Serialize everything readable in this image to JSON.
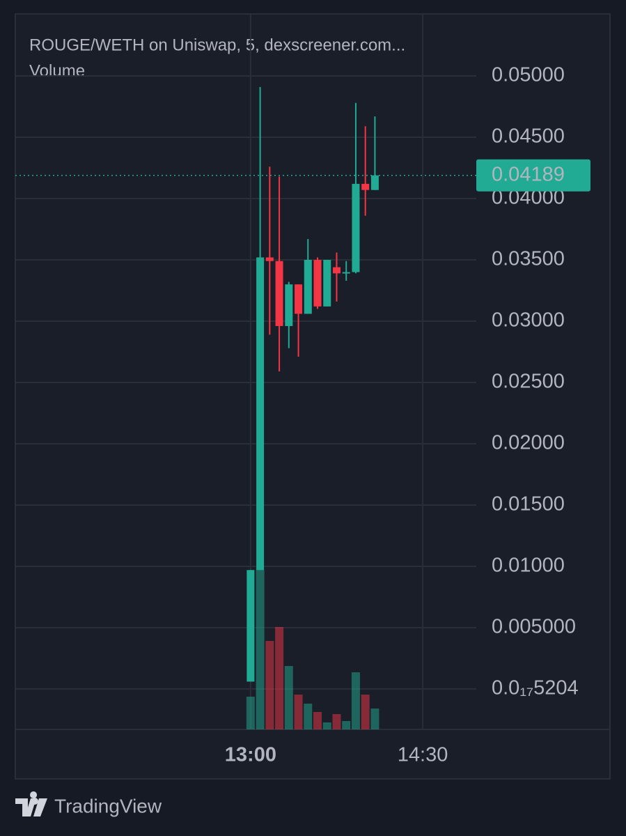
{
  "chart_data": {
    "type": "candlestick",
    "title": "ROUGE/WETH on Uniswap, 5, dexscreener.com...",
    "subtitle": "Volume",
    "brand": "TradingView",
    "x": [
      780,
      785,
      790,
      795,
      800,
      805,
      810,
      815,
      820,
      825,
      830,
      835,
      840,
      845
    ],
    "xlim": [
      657,
      898
    ],
    "xticks": [
      {
        "value": 780,
        "label": "13:00"
      },
      {
        "value": 870,
        "label": "14:30"
      }
    ],
    "open": [
      0.0006,
      0.0097,
      0.0352,
      0.0349,
      0.0296,
      0.033,
      0.0306,
      0.035,
      0.0312,
      0.0344,
      0.0339,
      0.034,
      0.0412,
      0.0407
    ],
    "high": [
      0.0097,
      0.0491,
      0.0426,
      0.0418,
      0.0332,
      0.033,
      0.0367,
      0.0352,
      0.035,
      0.0356,
      0.0349,
      0.0478,
      0.0459,
      0.0467
    ],
    "low": [
      0.0006,
      0.0097,
      0.0289,
      0.0259,
      0.0278,
      0.0271,
      0.0306,
      0.031,
      0.0312,
      0.0316,
      0.0333,
      0.0339,
      0.0386,
      0.0407
    ],
    "close": [
      0.0097,
      0.0352,
      0.0349,
      0.0296,
      0.033,
      0.0306,
      0.035,
      0.0312,
      0.035,
      0.0339,
      0.034,
      0.0412,
      0.0407,
      0.04189
    ],
    "volume": [
      47,
      229,
      127,
      147,
      91,
      50,
      37,
      25,
      10,
      22,
      12,
      82,
      50,
      30
    ],
    "up_color": "#22ab94",
    "down_color": "#f23645",
    "ylim": [
      -0.0033,
      0.05506
    ],
    "yticks": [
      {
        "value": 5.204e-18,
        "label": "0.0₁₇5204"
      },
      {
        "value": 0.005,
        "label": "0.005000"
      },
      {
        "value": 0.01,
        "label": "0.01000"
      },
      {
        "value": 0.015,
        "label": "0.01500"
      },
      {
        "value": 0.02,
        "label": "0.02000"
      },
      {
        "value": 0.025,
        "label": "0.02500"
      },
      {
        "value": 0.03,
        "label": "0.03000"
      },
      {
        "value": 0.035,
        "label": "0.03500"
      },
      {
        "value": 0.04,
        "label": "0.04000"
      },
      {
        "value": 0.045,
        "label": "0.04500"
      },
      {
        "value": 0.05,
        "label": "0.05000"
      }
    ],
    "last_price": 0.04189,
    "grid": true
  }
}
